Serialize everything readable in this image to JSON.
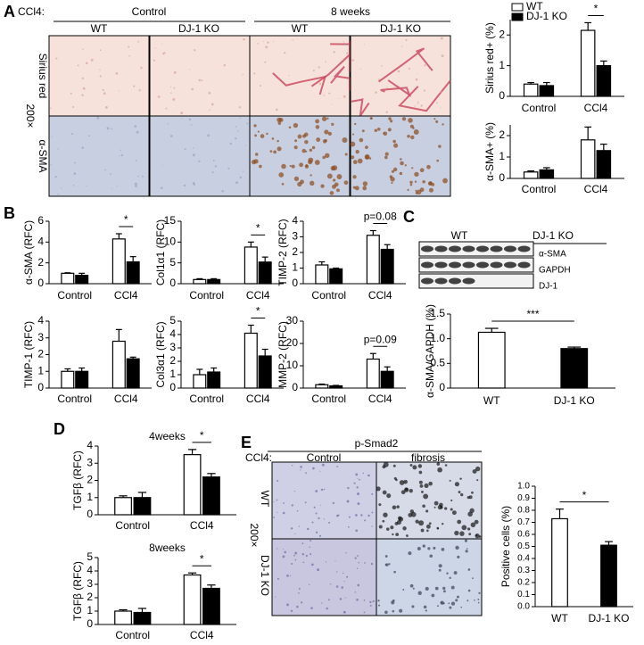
{
  "figure": {
    "panel_labels": [
      "A",
      "B",
      "C",
      "D",
      "E"
    ],
    "panel_a": {
      "treatment": "CCl4:",
      "groups": [
        "Control",
        "8 weeks"
      ],
      "genotypes": [
        "WT",
        "DJ-1 KO",
        "WT",
        "DJ-1 KO"
      ],
      "stains": [
        "Sirius red",
        "α-SMA"
      ],
      "magnification": "200×"
    },
    "blot": {
      "groups": [
        "WT",
        "DJ-1 KO"
      ],
      "bands": [
        "α-SMA",
        "GAPDH",
        "DJ-1"
      ]
    },
    "panel_e": {
      "title": "p-Smad2",
      "treatment": "CCl4:",
      "groups": [
        "Control",
        "fibrosis"
      ],
      "genotypes": [
        "WT",
        "DJ-1 KO"
      ],
      "magnification": "200×"
    }
  },
  "chart_data": [
    {
      "type": "bar",
      "y_label": "Sirius red+ (%)",
      "categories": [
        "Control",
        "CCl4"
      ],
      "legend": "upper left",
      "series": [
        {
          "name": "WT",
          "color": "#ffffff",
          "values": [
            0.4,
            2.15
          ],
          "errors": [
            0.05,
            0.25
          ]
        },
        {
          "name": "DJ-1 KO",
          "color": "#000000",
          "values": [
            0.35,
            1.0
          ],
          "errors": [
            0.1,
            0.15
          ]
        }
      ],
      "ylim": [
        0,
        2.5
      ],
      "yticks": [
        0,
        1,
        2
      ],
      "annotation": "*"
    },
    {
      "type": "bar",
      "y_label": "α-SMA+ (%)",
      "categories": [
        "Control",
        "CCl4"
      ],
      "series": [
        {
          "name": "WT",
          "color": "#ffffff",
          "values": [
            0.3,
            1.8
          ],
          "errors": [
            0.05,
            0.6
          ]
        },
        {
          "name": "DJ-1 KO",
          "color": "#000000",
          "values": [
            0.4,
            1.3
          ],
          "errors": [
            0.1,
            0.3
          ]
        }
      ],
      "ylim": [
        0,
        2.5
      ],
      "yticks": [
        0,
        1,
        2
      ]
    },
    {
      "type": "bar",
      "y_label": "α-SMA (RFC)",
      "categories": [
        "Control",
        "CCl4"
      ],
      "series": [
        {
          "name": "WT",
          "color": "#ffffff",
          "values": [
            1,
            4.3
          ],
          "errors": [
            0.05,
            0.5
          ]
        },
        {
          "name": "DJ-1 KO",
          "color": "#000000",
          "values": [
            0.8,
            2.1
          ],
          "errors": [
            0.2,
            0.5
          ]
        }
      ],
      "ylim": [
        0,
        6
      ],
      "yticks": [
        0,
        2,
        4,
        6
      ],
      "annotation": "*"
    },
    {
      "type": "bar",
      "y_label": "Col1α1 (RFC)",
      "categories": [
        "Control",
        "CCl4"
      ],
      "series": [
        {
          "name": "WT",
          "color": "#ffffff",
          "values": [
            1,
            8.8
          ],
          "errors": [
            0.2,
            1.2
          ]
        },
        {
          "name": "DJ-1 KO",
          "color": "#000000",
          "values": [
            1,
            5.2
          ],
          "errors": [
            0.2,
            1.2
          ]
        }
      ],
      "ylim": [
        0,
        15
      ],
      "yticks": [
        0,
        5,
        10,
        15
      ],
      "annotation": "*"
    },
    {
      "type": "bar",
      "y_label": "TIMP-2 (RFC)",
      "categories": [
        "Control",
        "CCl4"
      ],
      "series": [
        {
          "name": "WT",
          "color": "#ffffff",
          "values": [
            1.2,
            3.1
          ],
          "errors": [
            0.2,
            0.3
          ]
        },
        {
          "name": "DJ-1 KO",
          "color": "#000000",
          "values": [
            0.95,
            2.2
          ],
          "errors": [
            0.05,
            0.3
          ]
        }
      ],
      "ylim": [
        0,
        4
      ],
      "yticks": [
        0,
        1,
        2,
        3,
        4
      ],
      "annotation": "p=0.08"
    },
    {
      "type": "bar",
      "y_label": "TIMP-1 (RFC)",
      "categories": [
        "Control",
        "CCl4"
      ],
      "series": [
        {
          "name": "WT",
          "color": "#ffffff",
          "values": [
            1,
            2.8
          ],
          "errors": [
            0.15,
            0.7
          ]
        },
        {
          "name": "DJ-1 KO",
          "color": "#000000",
          "values": [
            1,
            1.75
          ],
          "errors": [
            0.2,
            0.1
          ]
        }
      ],
      "ylim": [
        0,
        4
      ],
      "yticks": [
        0,
        1,
        2,
        3,
        4
      ]
    },
    {
      "type": "bar",
      "y_label": "Col3α1 (RFC)",
      "categories": [
        "Control",
        "CCl4"
      ],
      "series": [
        {
          "name": "WT",
          "color": "#ffffff",
          "values": [
            1,
            4.1
          ],
          "errors": [
            0.4,
            0.6
          ]
        },
        {
          "name": "DJ-1 KO",
          "color": "#000000",
          "values": [
            1.2,
            2.4
          ],
          "errors": [
            0.3,
            0.5
          ]
        }
      ],
      "ylim": [
        0,
        5
      ],
      "yticks": [
        0,
        1,
        2,
        3,
        4,
        5
      ],
      "annotation": "*"
    },
    {
      "type": "bar",
      "y_label": "MMP-2 (RFC)",
      "categories": [
        "Control",
        "CCl4"
      ],
      "series": [
        {
          "name": "WT",
          "color": "#ffffff",
          "values": [
            1.5,
            13
          ],
          "errors": [
            0.3,
            2.5
          ]
        },
        {
          "name": "DJ-1 KO",
          "color": "#000000",
          "values": [
            1,
            7.5
          ],
          "errors": [
            0.2,
            2
          ]
        }
      ],
      "ylim": [
        0,
        30
      ],
      "yticks": [
        0,
        10,
        20,
        30
      ],
      "annotation": "p=0.09"
    },
    {
      "type": "bar",
      "y_label": "α-SMA/GAPDH (%)",
      "categories": [
        "WT",
        "DJ-1 KO"
      ],
      "values": [
        1.13,
        0.8
      ],
      "errors": [
        0.08,
        0.03
      ],
      "colors": [
        "#ffffff",
        "#000000"
      ],
      "ylim": [
        0,
        1.5
      ],
      "yticks": [
        0,
        0.5,
        {
          "value": 1,
          "label": "1.0"
        },
        1.5
      ],
      "annotation": "***"
    },
    {
      "type": "bar",
      "title": "4weeks",
      "y_label": "TGFβ (RFC)",
      "categories": [
        "Control",
        "CCl4"
      ],
      "series": [
        {
          "name": "WT",
          "color": "#ffffff",
          "values": [
            1,
            3.5
          ],
          "errors": [
            0.1,
            0.3
          ]
        },
        {
          "name": "DJ-1 KO",
          "color": "#000000",
          "values": [
            1,
            2.2
          ],
          "errors": [
            0.3,
            0.2
          ]
        }
      ],
      "ylim": [
        0,
        4
      ],
      "yticks": [
        0,
        1,
        2,
        3,
        4
      ],
      "annotation": "*"
    },
    {
      "type": "bar",
      "title": "8weeks",
      "y_label": "TGFβ (RFC)",
      "categories": [
        "Control",
        "CCl4"
      ],
      "series": [
        {
          "name": "WT",
          "color": "#ffffff",
          "values": [
            1,
            3.7
          ],
          "errors": [
            0.1,
            0.15
          ]
        },
        {
          "name": "DJ-1 KO",
          "color": "#000000",
          "values": [
            0.9,
            2.7
          ],
          "errors": [
            0.3,
            0.25
          ]
        }
      ],
      "ylim": [
        0,
        5
      ],
      "yticks": [
        0,
        1,
        2,
        3,
        4,
        5
      ],
      "annotation": "*"
    },
    {
      "type": "bar",
      "y_label": "Positive cells (%)",
      "categories": [
        "WT",
        "DJ-1 KO"
      ],
      "values": [
        0.73,
        0.51
      ],
      "errors": [
        0.08,
        0.03
      ],
      "colors": [
        "#ffffff",
        "#000000"
      ],
      "ylim": [
        0,
        1
      ],
      "yticks": [
        {
          "value": 0,
          "label": "0.0"
        },
        0.1,
        0.2,
        0.3,
        0.4,
        0.5,
        0.6,
        0.7,
        0.8,
        0.9,
        {
          "value": 1,
          "label": "1.0"
        }
      ],
      "annotation": "*"
    }
  ]
}
